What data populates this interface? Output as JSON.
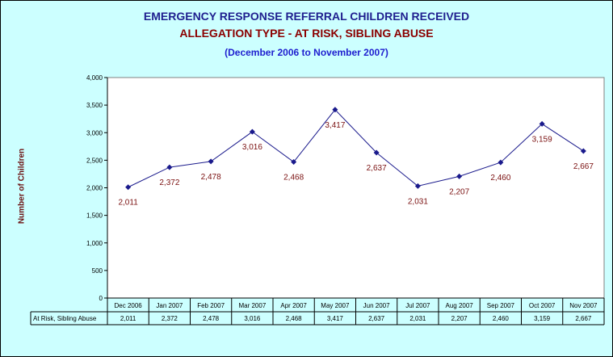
{
  "chart_data": {
    "type": "line",
    "title": "EMERGENCY RESPONSE REFERRAL CHILDREN RECEIVED",
    "subtitle": "ALLEGATION TYPE - AT RISK, SIBLING ABUSE",
    "date_range": "(December 2006 to November 2007)",
    "ylabel": "Number of Children",
    "ylim": [
      0,
      4000
    ],
    "yticks": [
      "0",
      "500",
      "1,000",
      "1,500",
      "2,000",
      "2,500",
      "3,000",
      "3,500",
      "4,000"
    ],
    "ytick_values": [
      0,
      500,
      1000,
      1500,
      2000,
      2500,
      3000,
      3500,
      4000
    ],
    "categories": [
      "Dec 2006",
      "Jan 2007",
      "Feb 2007",
      "Mar 2007",
      "Apr 2007",
      "May 2007",
      "Jun 2007",
      "Jul 2007",
      "Aug 2007",
      "Sep 2007",
      "Oct 2007",
      "Nov 2007"
    ],
    "series": [
      {
        "name": "At Risk, Sibling Abuse",
        "values": [
          2011,
          2372,
          2478,
          3016,
          2468,
          3417,
          2637,
          2031,
          2207,
          2460,
          3159,
          2667
        ],
        "labels": [
          "2,011",
          "2,372",
          "2,478",
          "3,016",
          "2,468",
          "3,417",
          "2,637",
          "2,031",
          "2,207",
          "2,460",
          "3,159",
          "2,667"
        ],
        "color": "#1a1a8c"
      }
    ],
    "grid": false,
    "plot_background": "#ffffff",
    "label_color": "#7a1010"
  }
}
